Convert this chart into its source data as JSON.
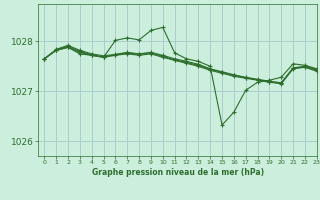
{
  "title": "Graphe pression niveau de la mer (hPa)",
  "bg_color": "#cceedd",
  "grid_color": "#aacccc",
  "line_color": "#2d6e2d",
  "xlim": [
    -0.5,
    23
  ],
  "ylim": [
    1025.7,
    1028.75
  ],
  "yticks": [
    1026,
    1027,
    1028
  ],
  "xticks": [
    0,
    1,
    2,
    3,
    4,
    5,
    6,
    7,
    8,
    9,
    10,
    11,
    12,
    13,
    14,
    15,
    16,
    17,
    18,
    19,
    20,
    21,
    22,
    23
  ],
  "series": [
    {
      "x": [
        0,
        1,
        2,
        3,
        4,
        5,
        6,
        7,
        8,
        9,
        10,
        11,
        12,
        13,
        14,
        15,
        16,
        17,
        18,
        19,
        20,
        21,
        22,
        23
      ],
      "y": [
        1027.65,
        1027.82,
        1027.88,
        1027.75,
        1027.72,
        1027.68,
        1028.02,
        1028.07,
        1028.03,
        1028.22,
        1028.28,
        1027.77,
        1027.65,
        1027.6,
        1027.5,
        1026.32,
        1026.58,
        1027.02,
        1027.18,
        1027.22,
        1027.28,
        1027.55,
        1027.52,
        1027.45
      ]
    },
    {
      "x": [
        0,
        1,
        2,
        3,
        4,
        5,
        6,
        7,
        8,
        9,
        10,
        11,
        12,
        13,
        14,
        15,
        16,
        17,
        18,
        19,
        20,
        21,
        22,
        23
      ],
      "y": [
        1027.65,
        1027.82,
        1027.88,
        1027.78,
        1027.72,
        1027.68,
        1027.72,
        1027.75,
        1027.72,
        1027.75,
        1027.68,
        1027.62,
        1027.56,
        1027.5,
        1027.42,
        1027.36,
        1027.3,
        1027.26,
        1027.22,
        1027.18,
        1027.15,
        1027.45,
        1027.48,
        1027.4
      ]
    },
    {
      "x": [
        0,
        1,
        2,
        3,
        4,
        5,
        6,
        7,
        8,
        9,
        10,
        11,
        12,
        13,
        14,
        15,
        16,
        17,
        18,
        19,
        20,
        21,
        22,
        23
      ],
      "y": [
        1027.65,
        1027.83,
        1027.9,
        1027.8,
        1027.73,
        1027.69,
        1027.73,
        1027.77,
        1027.74,
        1027.77,
        1027.7,
        1027.63,
        1027.58,
        1027.52,
        1027.44,
        1027.38,
        1027.32,
        1027.27,
        1027.23,
        1027.19,
        1027.16,
        1027.46,
        1027.49,
        1027.42
      ]
    },
    {
      "x": [
        0,
        1,
        2,
        3,
        4,
        5,
        6,
        7,
        8,
        9,
        10,
        11,
        12,
        13,
        14,
        15,
        16,
        17,
        18,
        19,
        20,
        21,
        22,
        23
      ],
      "y": [
        1027.65,
        1027.84,
        1027.92,
        1027.82,
        1027.75,
        1027.71,
        1027.74,
        1027.78,
        1027.75,
        1027.78,
        1027.72,
        1027.65,
        1027.6,
        1027.54,
        1027.45,
        1027.39,
        1027.33,
        1027.28,
        1027.24,
        1027.2,
        1027.17,
        1027.47,
        1027.5,
        1027.44
      ]
    }
  ]
}
